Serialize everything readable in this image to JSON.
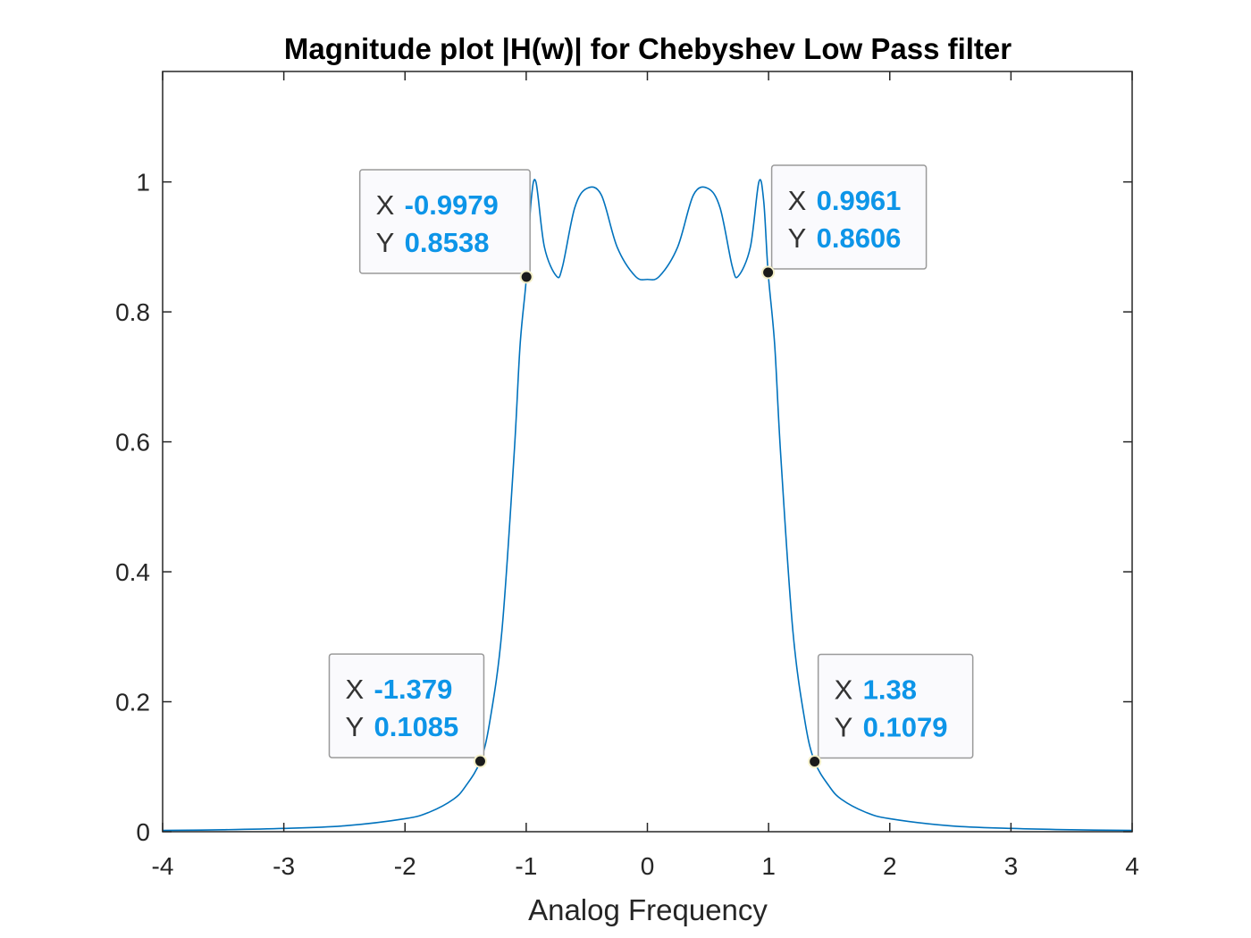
{
  "chart_data": {
    "type": "line",
    "title": "Magnitude plot |H(w)| for Chebyshev Low Pass filter",
    "xlabel": "Analog Frequency",
    "ylabel": "",
    "xlim": [
      -4,
      4
    ],
    "ylim": [
      0,
      1.17
    ],
    "xticks": [
      -4,
      -3,
      -2,
      -1,
      0,
      1,
      2,
      3,
      4
    ],
    "yticks": [
      0,
      0.2,
      0.4,
      0.6,
      0.8,
      1
    ],
    "xtick_labels": [
      "-4",
      "-3",
      "-2",
      "-1",
      "0",
      "1",
      "2",
      "3",
      "4"
    ],
    "ytick_labels": [
      "0",
      "0.2",
      "0.4",
      "0.6",
      "0.8",
      "1"
    ],
    "grid": false,
    "line_color": "#0072bd",
    "series": [
      {
        "description_free": true,
        "x": [
          -4.0,
          -3.5,
          -3.0,
          -2.5,
          -2.0,
          -1.8,
          -1.6,
          -1.5,
          -1.379,
          -1.3,
          -1.2,
          -1.1,
          -1.05,
          -0.9979,
          -0.96,
          -0.92,
          -0.85,
          -0.75,
          -0.7,
          -0.6,
          -0.5,
          -0.38,
          -0.25,
          -0.1,
          0.0,
          0.1,
          0.25,
          0.38,
          0.5,
          0.6,
          0.7,
          0.75,
          0.85,
          0.92,
          0.96,
          0.9961,
          1.05,
          1.1,
          1.2,
          1.3,
          1.38,
          1.5,
          1.6,
          1.8,
          2.0,
          2.5,
          3.0,
          3.5,
          4.0
        ],
        "y": [
          0.002,
          0.003,
          0.005,
          0.009,
          0.02,
          0.03,
          0.05,
          0.07,
          0.1085,
          0.17,
          0.31,
          0.58,
          0.75,
          0.8538,
          0.97,
          1.0,
          0.9,
          0.855,
          0.87,
          0.96,
          0.99,
          0.98,
          0.9,
          0.855,
          0.85,
          0.855,
          0.9,
          0.98,
          0.99,
          0.96,
          0.87,
          0.855,
          0.9,
          1.0,
          0.97,
          0.8606,
          0.75,
          0.58,
          0.31,
          0.17,
          0.1079,
          0.07,
          0.05,
          0.03,
          0.02,
          0.009,
          0.005,
          0.003,
          0.002
        ]
      }
    ],
    "datatips": [
      {
        "x": -0.9979,
        "y": 0.8538,
        "x_text": "-0.9979",
        "y_text": "0.8538"
      },
      {
        "x": 0.9961,
        "y": 0.8606,
        "x_text": "0.9961",
        "y_text": "0.8606"
      },
      {
        "x": -1.379,
        "y": 0.1085,
        "x_text": "-1.379",
        "y_text": "0.1085"
      },
      {
        "x": 1.38,
        "y": 0.1079,
        "x_text": "1.38",
        "y_text": "0.1079"
      }
    ],
    "datatip_x_key": "X",
    "datatip_y_key": "Y"
  }
}
